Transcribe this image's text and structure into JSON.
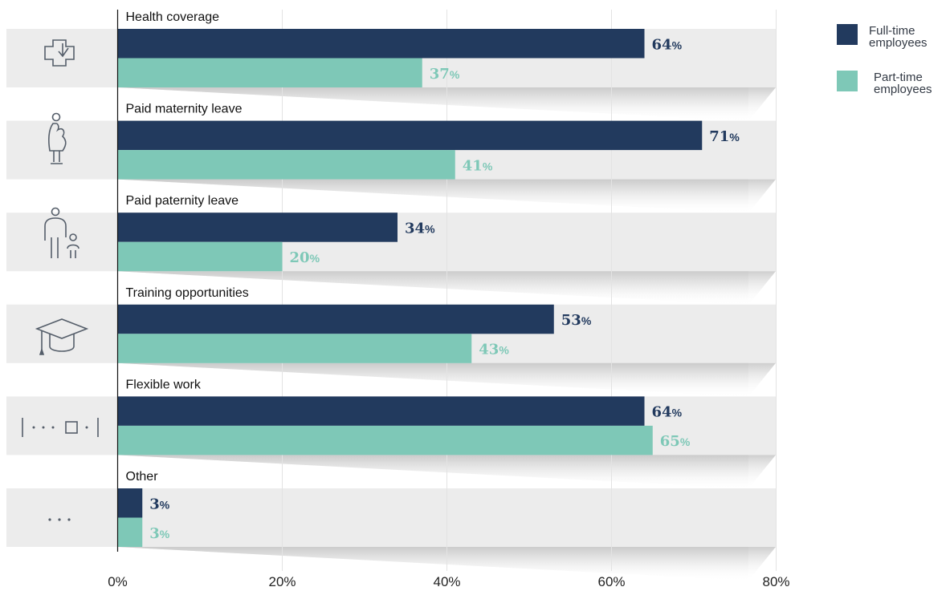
{
  "chart_data": {
    "type": "bar",
    "orientation": "horizontal",
    "categories": [
      "Health coverage",
      "Paid maternity leave",
      "Paid paternity leave",
      "Training opportunities",
      "Flexible work",
      "Other"
    ],
    "category_icons": [
      "health-cross-icon",
      "pregnant-woman-icon",
      "parent-child-icon",
      "graduation-cap-icon",
      "flexible-schedule-icon",
      "more-dots-icon"
    ],
    "series": [
      {
        "name": "Full-time employees",
        "values": [
          64,
          71,
          34,
          53,
          64,
          3
        ],
        "color": "#223a5e"
      },
      {
        "name": "Part-time employees",
        "values": [
          37,
          41,
          20,
          43,
          65,
          3
        ],
        "color": "#7ec8b7"
      }
    ],
    "value_suffix": "%",
    "xlim": [
      0,
      80
    ],
    "x_ticks": [
      "0%",
      "20%",
      "40%",
      "60%",
      "80%"
    ],
    "grid": true,
    "legend_position": "top-right"
  },
  "legend": {
    "full_time": "Full-time\nemployees",
    "part_time": "Part-time\nemployees"
  },
  "colors": {
    "row_background": "#ececec",
    "grid": "#e3e3e3",
    "axis": "#111111",
    "icon": "#555e6a"
  }
}
